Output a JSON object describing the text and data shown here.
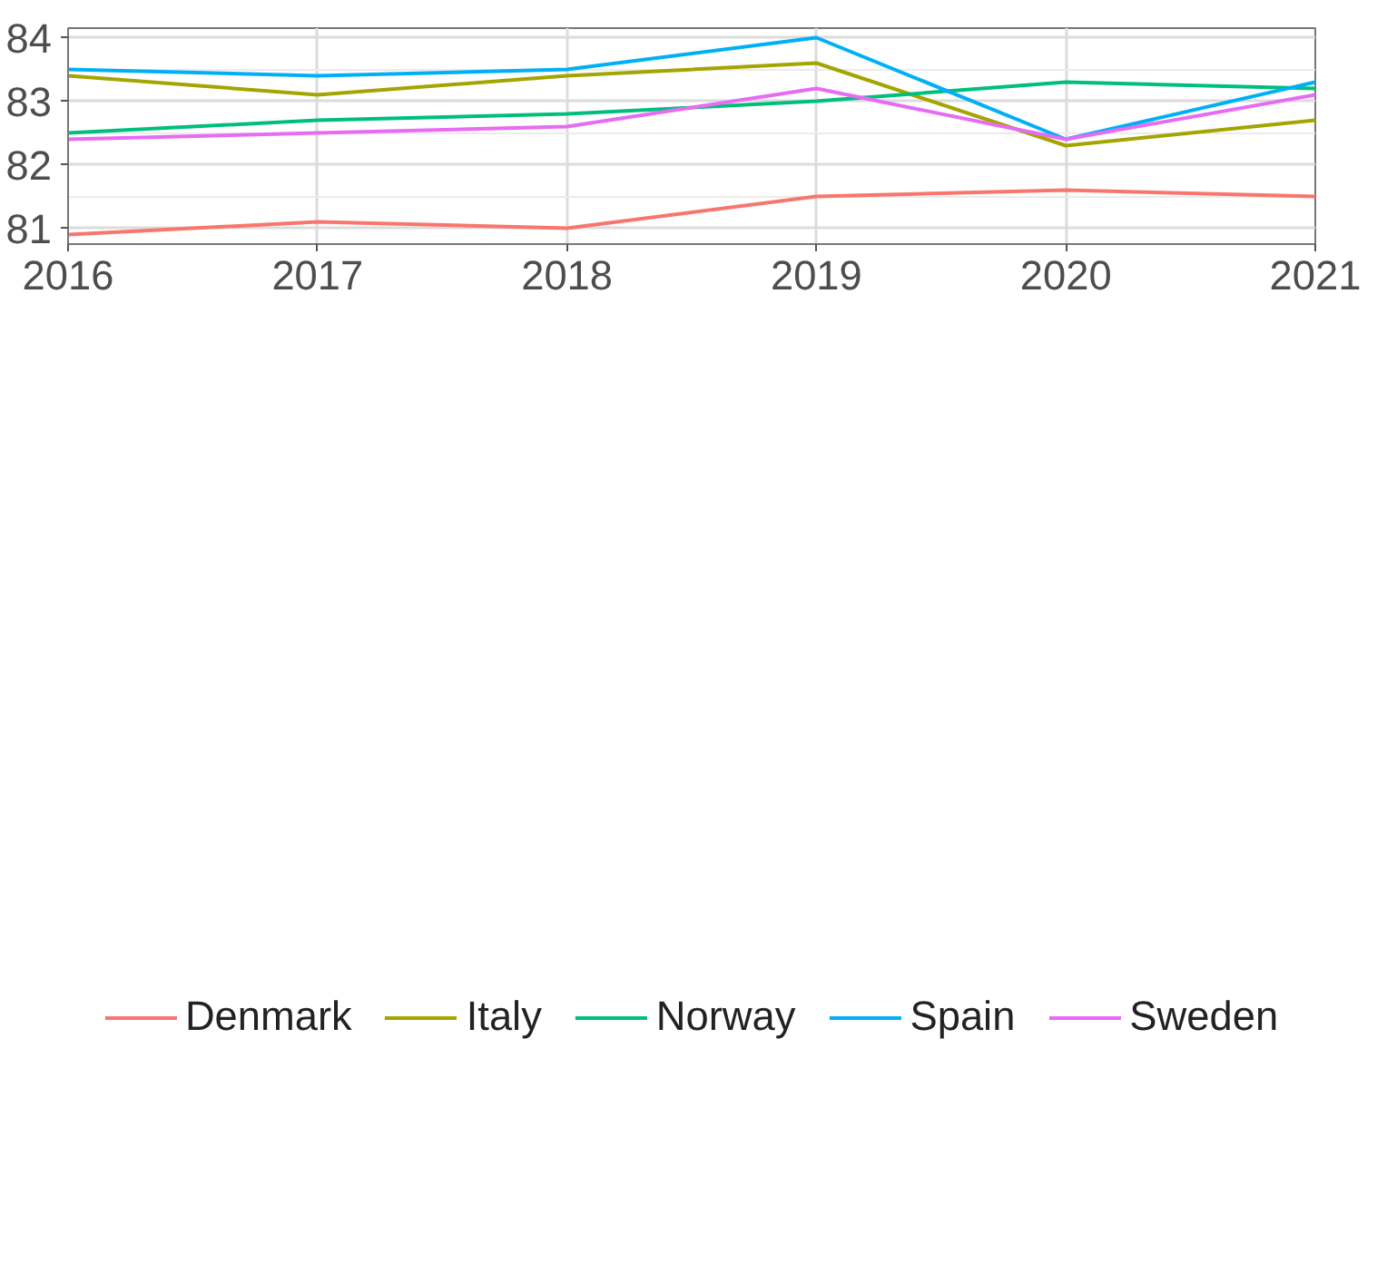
{
  "chart_data": {
    "type": "line",
    "x": [
      2016,
      2017,
      2018,
      2019,
      2020,
      2021
    ],
    "series": [
      {
        "name": "Denmark",
        "color": "#f8766d",
        "values": [
          80.9,
          81.1,
          81.0,
          81.5,
          81.6,
          81.5
        ]
      },
      {
        "name": "Italy",
        "color": "#a3a500",
        "values": [
          83.4,
          83.1,
          83.4,
          83.6,
          82.3,
          82.7
        ]
      },
      {
        "name": "Norway",
        "color": "#00bf7d",
        "values": [
          82.5,
          82.7,
          82.8,
          83.0,
          83.3,
          83.2
        ]
      },
      {
        "name": "Spain",
        "color": "#00b0f6",
        "values": [
          83.5,
          83.4,
          83.5,
          84.0,
          82.4,
          83.3
        ]
      },
      {
        "name": "Sweden",
        "color": "#e76bf3",
        "values": [
          82.4,
          82.5,
          82.6,
          83.2,
          82.4,
          83.1
        ]
      }
    ],
    "xlim": [
      2016,
      2021
    ],
    "xticks": [
      2016,
      2017,
      2018,
      2019,
      2020,
      2021
    ],
    "ylim": [
      80.75,
      84.15
    ],
    "yticks": [
      81,
      82,
      83,
      84
    ],
    "grid": true,
    "legend": "bottom",
    "marker": "none",
    "line_style": "solid"
  }
}
